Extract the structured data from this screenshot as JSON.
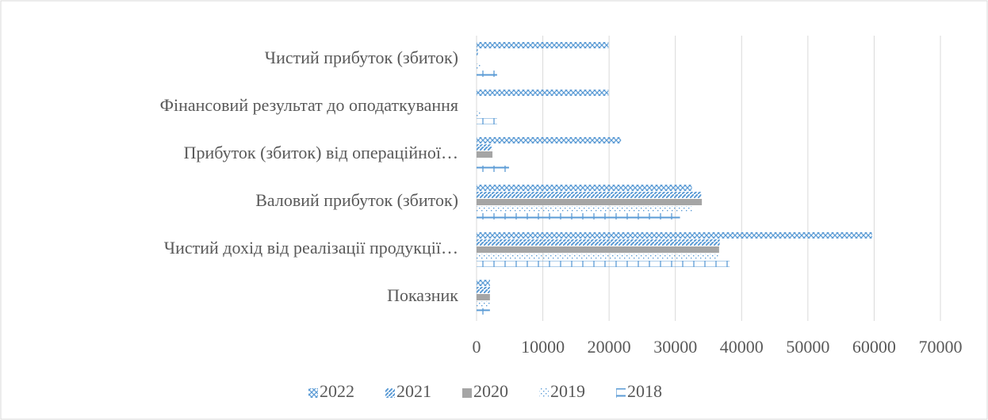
{
  "chart_data": {
    "type": "hbar",
    "categories": [
      "Показник",
      "Чистий дохід від реалізації продукції…",
      "Валовий прибуток (збиток)",
      "Прибуток (збиток) від операційної…",
      "Фінансовий результат до оподаткування",
      "Чистий прибуток (збиток)"
    ],
    "series": [
      {
        "name": "2022",
        "color": "#5b9bd5",
        "pattern": "crosshatch",
        "values": [
          2022,
          59700,
          32500,
          21800,
          19900,
          19900
        ]
      },
      {
        "name": "2021",
        "color": "#5b9bd5",
        "pattern": "diagonal",
        "values": [
          2021,
          36700,
          33900,
          2300,
          0,
          200
        ]
      },
      {
        "name": "2020",
        "color": "#a5a5a5",
        "pattern": "solid",
        "values": [
          2020,
          36600,
          34000,
          2400,
          0,
          0
        ]
      },
      {
        "name": "2019",
        "color": "#5b9bd5",
        "pattern": "dotted",
        "values": [
          2019,
          36500,
          32500,
          0,
          700,
          700
        ]
      },
      {
        "name": "2018",
        "color": "#5b9bd5",
        "pattern": "ticks",
        "values": [
          2018,
          38200,
          30700,
          4900,
          3100,
          3100
        ]
      }
    ],
    "xlim": [
      0,
      70000
    ],
    "xticks": [
      0,
      10000,
      20000,
      30000,
      40000,
      50000,
      60000,
      70000
    ],
    "grid": true,
    "legend": "bottom"
  }
}
